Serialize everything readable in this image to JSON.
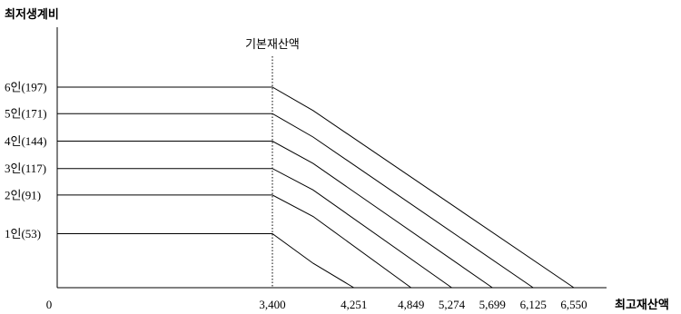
{
  "chart_data": {
    "type": "line",
    "ylabel": "최저생계비",
    "xlabel": "최고재산액",
    "origin_label": "0",
    "annotation": "기본재산액",
    "basic_property": 3400,
    "x_ticks": [
      {
        "value": 3400,
        "label": "3,400"
      },
      {
        "value": 4251,
        "label": "4,251"
      },
      {
        "value": 4849,
        "label": "4,849"
      },
      {
        "value": 5274,
        "label": "5,274"
      },
      {
        "value": 5699,
        "label": "5,699"
      },
      {
        "value": 6125,
        "label": "6,125"
      },
      {
        "value": 6550,
        "label": "6,550"
      }
    ],
    "series": [
      {
        "name": "1인(53)",
        "value": 53,
        "points": [
          [
            0,
            53
          ],
          [
            3400,
            53
          ],
          [
            3825,
            24
          ],
          [
            4251,
            0
          ]
        ]
      },
      {
        "name": "2인(91)",
        "value": 91,
        "points": [
          [
            0,
            91
          ],
          [
            3400,
            91
          ],
          [
            3825,
            70
          ],
          [
            4849,
            0
          ]
        ]
      },
      {
        "name": "3인(117)",
        "value": 117,
        "points": [
          [
            0,
            117
          ],
          [
            3400,
            117
          ],
          [
            3825,
            96
          ],
          [
            5274,
            0
          ]
        ]
      },
      {
        "name": "4인(144)",
        "value": 144,
        "points": [
          [
            0,
            144
          ],
          [
            3400,
            144
          ],
          [
            3825,
            122
          ],
          [
            5699,
            0
          ]
        ]
      },
      {
        "name": "5인(171)",
        "value": 171,
        "points": [
          [
            0,
            171
          ],
          [
            3400,
            171
          ],
          [
            3825,
            148
          ],
          [
            6125,
            0
          ]
        ]
      },
      {
        "name": "6인(197)",
        "value": 197,
        "points": [
          [
            0,
            197
          ],
          [
            3400,
            197
          ],
          [
            3825,
            174
          ],
          [
            6550,
            0
          ]
        ]
      }
    ]
  }
}
